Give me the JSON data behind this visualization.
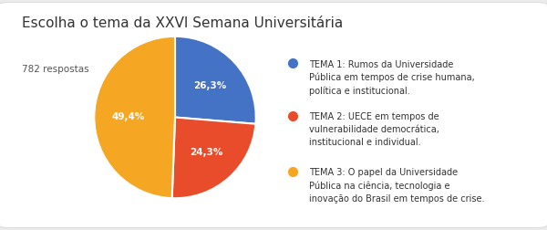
{
  "title": "Escolha o tema da XXVI Semana Universitária",
  "subtitle": "782 respostas",
  "values": [
    26.3,
    24.3,
    49.4
  ],
  "colors": [
    "#4472C4",
    "#E84C2B",
    "#F5A623"
  ],
  "labels": [
    "26,3%",
    "24,3%",
    "49,4%"
  ],
  "legend_labels": [
    "TEMA 1: Rumos da Universidade\nPública em tempos de crise humana,\npolítica e institucional.",
    "TEMA 2: UECE em tempos de\nvulnerabilidade democrática,\ninstitucional e individual.",
    "TEMA 3: O papel da Universidade\nPública na ciência, tecnologia e\ninovação do Brasil em tempos de crise."
  ],
  "startangle": 90,
  "background_color": "#ebebeb",
  "card_color": "#ffffff",
  "card_edge_color": "#dddddd",
  "title_fontsize": 11,
  "subtitle_fontsize": 7.5,
  "label_fontsize": 7.5,
  "legend_fontsize": 7.0,
  "title_color": "#333333",
  "subtitle_color": "#555555",
  "label_color": "#ffffff",
  "legend_text_color": "#333333"
}
